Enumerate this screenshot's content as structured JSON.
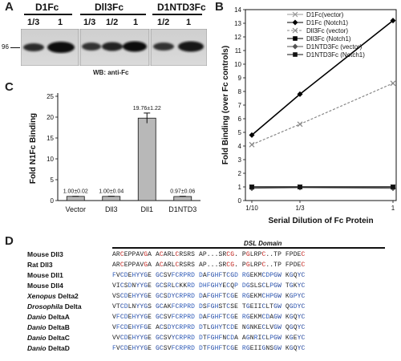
{
  "panel_a": {
    "letter": "A",
    "groups": [
      "D1Fc",
      "Dll3Fc",
      "D1NTD3Fc"
    ],
    "lanes": [
      "1/3",
      "1",
      "1/3",
      "1/2",
      "1",
      "1/2",
      "1"
    ],
    "marker": "96",
    "caption": "WB: anti-Fc"
  },
  "panel_b": {
    "letter": "B"
  },
  "panel_c": {
    "letter": "C"
  },
  "panel_d": {
    "letter": "D",
    "domain_title": "DSL Domain",
    "rows": [
      {
        "pre": "",
        "ital": "",
        "post": "Mouse Dll3",
        "seq": "ARCEPPAVGA ACARLCRSRS AP...SRCG. PGLRPC..TP FPDEC"
      },
      {
        "pre": "",
        "ital": "",
        "post": "Rat Dll3",
        "seq": "ARCEPPAVGA ACARLCRSRS AP...SRCG. PGLRPC..TP FPDEC"
      },
      {
        "pre": "",
        "ital": "",
        "post": "Mouse Dll1",
        "seq": "FVCDEHYYGE GCSVFCRPRD DAFGHFTCGD RGEKMCDPGW KGQYC"
      },
      {
        "pre": "",
        "ital": "",
        "post": "Mouse Dll4",
        "seq": "VICSDNYYGE GCSRLCKKRD DHFGHYECQP DGSLSCLPGW TGKYC"
      },
      {
        "pre": "",
        "ital": "Xenopus",
        "post": " Delta2",
        "seq": "VSCDEHYYGE GCSDYCRPRD DAFGHFTCGE RGEKMCHPGW KGPYC"
      },
      {
        "pre": "",
        "ital": "Drosophila",
        "post": " Delta",
        "seq": "VTCDLNYYGS GCAKFCRPRD DSFGHSTCSE TGEIICLTGW QGDYC"
      },
      {
        "pre": "",
        "ital": "Danio",
        "post": " DeltaA",
        "seq": "VFCDEHYYGE GCSVFCRPRD DAFGHFTCGE RGEKMCDAGW KGQYC"
      },
      {
        "pre": "",
        "ital": "Danio",
        "post": " DeltaB",
        "seq": "VFCDEHYFGE ACSDYCRPRD DTLGHYTCDE NGNKECLVGW QGQYC"
      },
      {
        "pre": "",
        "ital": "Danio",
        "post": " DeltaC",
        "seq": "VVCDEHYYGE GCSVYCRPRD DTFGHFNCDA AGNRICLPGW KGEYC"
      },
      {
        "pre": "",
        "ital": "Danio",
        "post": " DeltaD",
        "seq": "FVCDEHYYGE GCSVFCRPRD DTFGHFTCGE RGEIIGNSGW KGQYC"
      }
    ]
  },
  "chart_data": [
    {
      "type": "line",
      "xlabel": "Serial Dilution of Fc Protein",
      "ylabel": "Fold Binding (over Fc controls)",
      "x_ticks": [
        "1/10",
        "1/3",
        "1"
      ],
      "y_ticks": [
        "0",
        "1",
        "2",
        "3",
        "4",
        "5",
        "6",
        "7",
        "8",
        "9",
        "10",
        "11",
        "12",
        "13",
        "14"
      ],
      "ylim": [
        0,
        14
      ],
      "legend": "top-right",
      "series": [
        {
          "name": "D1Fc(vector)",
          "values": [
            1.0,
            1.0,
            1.0
          ],
          "color": "#999999",
          "marker": "x",
          "dash": false
        },
        {
          "name": "D1Fc (Notch1)",
          "values": [
            4.8,
            7.8,
            13.2
          ],
          "color": "#000000",
          "marker": "diamond",
          "dash": false
        },
        {
          "name": "Dll3Fc (vector)",
          "values": [
            4.1,
            5.6,
            8.6
          ],
          "color": "#888888",
          "marker": "x",
          "dash": true
        },
        {
          "name": "Dll3Fc (Notch1)",
          "values": [
            1.0,
            1.0,
            1.0
          ],
          "color": "#000000",
          "marker": "square",
          "dash": false
        },
        {
          "name": "D1NTD3Fc (vector)",
          "values": [
            0.9,
            0.95,
            0.9
          ],
          "color": "#555555",
          "marker": "diamond",
          "dash": false
        },
        {
          "name": "D1NTD3Fc (Notch1)",
          "values": [
            1.0,
            1.0,
            1.0
          ],
          "color": "#111111",
          "marker": "square",
          "dash": false
        }
      ]
    },
    {
      "type": "bar",
      "ylabel": "Fold N1Fc Binding",
      "categories": [
        "Vector",
        "Dll3",
        "Dll1",
        "D1NTD3"
      ],
      "values": [
        1.0,
        1.0,
        19.76,
        0.97
      ],
      "errors": [
        0.02,
        0.04,
        1.22,
        0.06
      ],
      "labels": [
        "1.00±0.02",
        "1.00±0.04",
        "19.76±1.22",
        "0.97±0.06"
      ],
      "y_ticks": [
        "0",
        "5",
        "10",
        "15",
        "20",
        "25"
      ],
      "ylim": [
        0,
        25
      ],
      "bar_color": "#b8b8b8"
    }
  ]
}
